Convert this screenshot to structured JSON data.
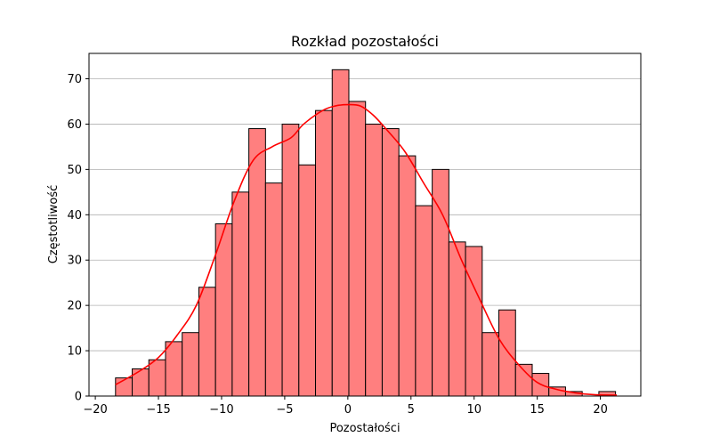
{
  "chart_data": {
    "type": "bar",
    "subtype": "histogram-with-kde",
    "title": "Rozkład pozostałości",
    "xlabel": "Pozostałości",
    "ylabel": "Częstotliwość",
    "xlim": [
      -20.5,
      23.2
    ],
    "ylim": [
      0,
      75.6
    ],
    "xticks": [
      -20,
      -15,
      -10,
      -5,
      0,
      5,
      10,
      15,
      20
    ],
    "yticks": [
      0,
      10,
      20,
      30,
      40,
      50,
      60,
      70
    ],
    "grid": "y",
    "legend": "none",
    "bar_color": "#ff7f7f",
    "edge_color": "#000000",
    "kde_color": "#ff0000",
    "bin_start": -18.4,
    "bin_width": 1.32,
    "counts": [
      4,
      6,
      8,
      12,
      14,
      24,
      38,
      45,
      59,
      47,
      60,
      51,
      63,
      72,
      65,
      60,
      59,
      53,
      42,
      50,
      34,
      33,
      14,
      19,
      7,
      5,
      2,
      1,
      0,
      1
    ],
    "kde": {
      "x": [
        -18.4,
        -16.5,
        -15,
        -13.5,
        -12,
        -10.5,
        -9,
        -7.5,
        -6,
        -4.5,
        -3.5,
        -2,
        -1,
        0,
        1,
        2,
        3,
        4.5,
        6,
        7.5,
        9,
        10.5,
        12,
        13.5,
        15,
        16.5,
        18,
        19.5,
        21.3
      ],
      "y": [
        2.5,
        5.5,
        8.5,
        13.5,
        20,
        31,
        43,
        52,
        55,
        57,
        60,
        63,
        64,
        64.3,
        64,
        62,
        59,
        54,
        47,
        40,
        30,
        21,
        12.5,
        7,
        3,
        1.5,
        0.7,
        0.3,
        0.2
      ]
    }
  }
}
